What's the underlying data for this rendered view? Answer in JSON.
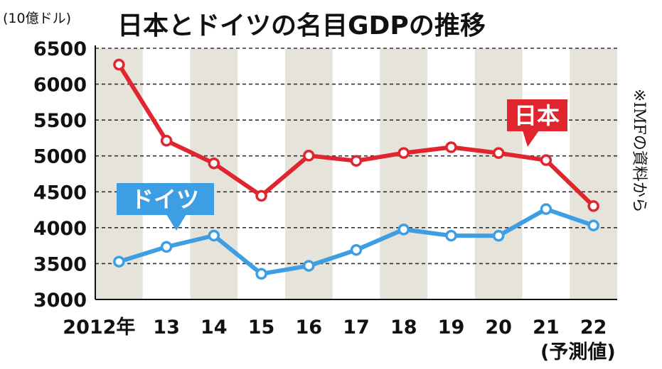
{
  "chart_data": {
    "type": "line",
    "title": "日本とドイツの名目GDPの推移",
    "unit_label": "(10億ドル)",
    "source_note": "※IMFの資料から",
    "forecast_note": "(予測値)",
    "categories": [
      "2012年",
      "13",
      "14",
      "15",
      "16",
      "17",
      "18",
      "19",
      "20",
      "21",
      "22"
    ],
    "yticks": [
      "6500",
      "6000",
      "5500",
      "5000",
      "4500",
      "4000",
      "3500",
      "3000"
    ],
    "ylim": [
      3000,
      6500
    ],
    "grid": "dashed horizontal",
    "series": [
      {
        "name": "日本",
        "color": "#e0252f",
        "values": [
          6272,
          5212,
          4896,
          4444,
          5004,
          4931,
          5041,
          5121,
          5040,
          4941,
          4301
        ]
      },
      {
        "name": "ドイツ",
        "color": "#3d9ee3",
        "values": [
          3527,
          3733,
          3890,
          3357,
          3469,
          3690,
          3975,
          3889,
          3887,
          4259,
          4031
        ]
      }
    ]
  },
  "colors": {
    "stripe": "#e6e3da",
    "axis": "#111111",
    "grid": "#333333"
  }
}
